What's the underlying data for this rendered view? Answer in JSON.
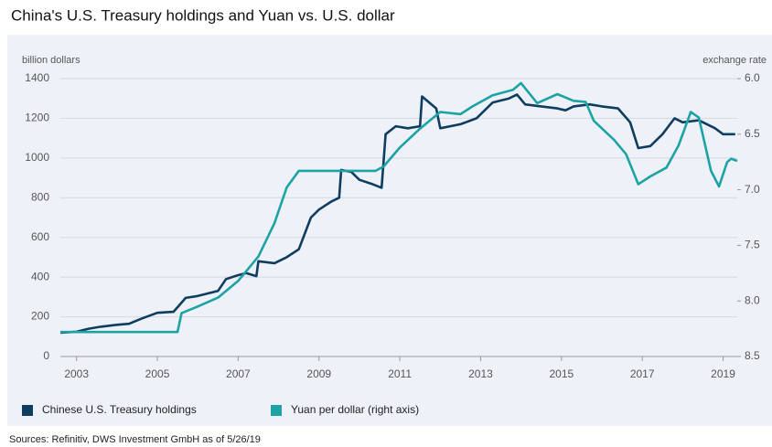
{
  "chart_data": {
    "type": "line",
    "title": "China's U.S. Treasury holdings and Yuan vs. U.S. dollar",
    "y_label": "billion dollars",
    "y2_label": "exchange rate",
    "source": "Sources: Refinitiv, DWS Investment GmbH as of 5/26/19",
    "xlim": [
      2002.6,
      2019.35
    ],
    "xticks": [
      2003,
      2005,
      2007,
      2009,
      2011,
      2013,
      2015,
      2017,
      2019
    ],
    "ylim": [
      0,
      1400
    ],
    "yticks": [
      0,
      200,
      400,
      600,
      800,
      1000,
      1200,
      1400
    ],
    "y2lim": [
      8.5,
      6.0
    ],
    "y2ticks": [
      {
        "value": 6,
        "label": "6.0"
      },
      6.5,
      {
        "value": 7,
        "label": "7.0"
      },
      7.5,
      {
        "value": 8,
        "label": "8.0"
      },
      8.5
    ],
    "grid": true,
    "legend": "bottom-left",
    "series": [
      {
        "name": "Chinese U.S. Treasury holdings",
        "color": "#0f3d5f",
        "x": [
          2002.6,
          2003.0,
          2003.3,
          2003.6,
          2004.0,
          2004.3,
          2004.6,
          2005.0,
          2005.4,
          2005.7,
          2006.0,
          2006.5,
          2006.7,
          2007.0,
          2007.2,
          2007.45,
          2007.5,
          2007.9,
          2008.2,
          2008.5,
          2008.8,
          2009.0,
          2009.3,
          2009.5,
          2009.55,
          2009.8,
          2010.0,
          2010.3,
          2010.55,
          2010.65,
          2010.9,
          2011.2,
          2011.5,
          2011.55,
          2011.9,
          2012.0,
          2012.5,
          2012.9,
          2013.3,
          2013.7,
          2013.9,
          2014.1,
          2014.5,
          2014.9,
          2015.1,
          2015.3,
          2015.7,
          2016.0,
          2016.4,
          2016.7,
          2016.9,
          2017.2,
          2017.5,
          2017.8,
          2018.0,
          2018.4,
          2018.8,
          2019.0,
          2019.3
        ],
        "values": [
          120,
          125,
          140,
          150,
          160,
          165,
          190,
          220,
          225,
          295,
          305,
          330,
          390,
          410,
          420,
          405,
          480,
          470,
          500,
          540,
          700,
          740,
          780,
          800,
          940,
          930,
          890,
          870,
          850,
          1120,
          1160,
          1150,
          1160,
          1310,
          1250,
          1150,
          1170,
          1200,
          1280,
          1300,
          1320,
          1270,
          1260,
          1250,
          1240,
          1260,
          1270,
          1260,
          1250,
          1180,
          1050,
          1060,
          1120,
          1200,
          1180,
          1190,
          1150,
          1120,
          1120
        ]
      },
      {
        "name": "Yuan per dollar (right axis)",
        "color": "#1da3a5",
        "axis": "y2",
        "x": [
          2002.6,
          2005.5,
          2005.6,
          2006.0,
          2006.5,
          2007.0,
          2007.5,
          2007.9,
          2008.2,
          2008.5,
          2009.0,
          2010.4,
          2010.6,
          2011.0,
          2011.5,
          2012.0,
          2012.5,
          2012.8,
          2013.3,
          2013.8,
          2014.0,
          2014.4,
          2014.9,
          2015.3,
          2015.6,
          2015.8,
          2016.3,
          2016.6,
          2016.9,
          2017.2,
          2017.6,
          2017.9,
          2018.2,
          2018.4,
          2018.7,
          2018.9,
          2019.1,
          2019.2,
          2019.35
        ],
        "values": [
          8.28,
          8.28,
          8.11,
          8.05,
          7.97,
          7.82,
          7.6,
          7.3,
          6.98,
          6.83,
          6.83,
          6.83,
          6.79,
          6.62,
          6.45,
          6.3,
          6.32,
          6.25,
          6.15,
          6.1,
          6.04,
          6.22,
          6.14,
          6.2,
          6.21,
          6.38,
          6.55,
          6.68,
          6.95,
          6.88,
          6.8,
          6.6,
          6.3,
          6.35,
          6.83,
          6.97,
          6.75,
          6.72,
          6.74
        ]
      }
    ]
  }
}
